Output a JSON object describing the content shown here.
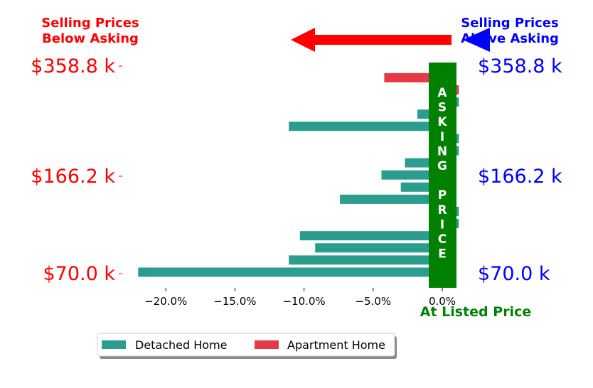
{
  "chart_data": {
    "type": "bar",
    "orientation": "horizontal",
    "xlim": [
      -23.0,
      1.2
    ],
    "x_ticks": [
      -20,
      -15,
      -10,
      -5,
      0
    ],
    "x_tick_labels": [
      "−20.0%",
      "−15.0%",
      "−10.0%",
      "−5.0%",
      "0.0%"
    ],
    "y_tick_labels": [
      "$358.8 k",
      "$166.2 k",
      "$70.0 k"
    ],
    "series": [
      {
        "name": "Detached Home",
        "color": "#2a9d8f"
      },
      {
        "name": "Apartment Home",
        "color": "#e63946"
      }
    ],
    "bars": [
      {
        "series": "Detached Home",
        "value": -22.0
      },
      {
        "series": "Detached Home",
        "value": -11.1
      },
      {
        "series": "Detached Home",
        "value": -9.2
      },
      {
        "series": "Detached Home",
        "value": -10.3
      },
      {
        "series": "Detached Home",
        "value": 1.2
      },
      {
        "series": "Detached Home",
        "value": 1.2
      },
      {
        "series": "Detached Home",
        "value": -7.4
      },
      {
        "series": "Detached Home",
        "value": -3.0
      },
      {
        "series": "Detached Home",
        "value": -4.4
      },
      {
        "series": "Detached Home",
        "value": -2.7
      },
      {
        "series": "Detached Home",
        "value": 1.2
      },
      {
        "series": "Detached Home",
        "value": 1.2
      },
      {
        "series": "Detached Home",
        "value": -11.1
      },
      {
        "series": "Detached Home",
        "value": -1.8
      },
      {
        "series": "Detached Home",
        "value": 1.2
      },
      {
        "series": "Apartment Home",
        "value": 1.2
      },
      {
        "series": "Apartment Home",
        "value": -4.2
      }
    ],
    "asking_price_band_label": "ASKING PRICE",
    "asking_price_band_color": "#008000",
    "at_listed_price_label": "At Listed Price",
    "below_asking_label": "Selling Prices\nBelow Asking",
    "below_asking_color": "#ff0000",
    "above_asking_label": "Selling Prices\nAbove Asking",
    "above_asking_color": "#0000ff",
    "legend_placement": "bottom-left"
  }
}
